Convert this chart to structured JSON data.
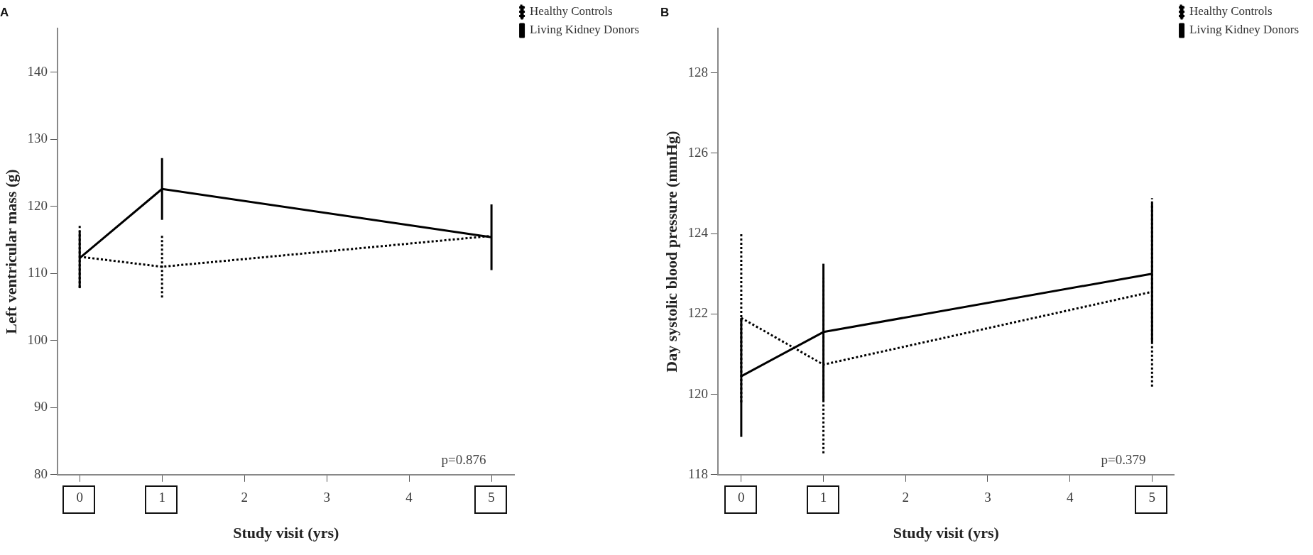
{
  "chart_data": [
    {
      "type": "line",
      "title": "A",
      "xlabel": "Study visit (yrs)",
      "ylabel": "Left ventricular mass (g)",
      "x": [
        0,
        1,
        5
      ],
      "xlim": [
        -0.27,
        5.28
      ],
      "xticks": [
        0,
        1,
        2,
        3,
        4,
        5
      ],
      "ylim": [
        80,
        146.5
      ],
      "yticks": [
        80,
        90,
        100,
        110,
        120,
        130,
        140
      ],
      "legend": "top right",
      "marker": "none",
      "annotations": [
        "p=0.876"
      ],
      "series": [
        {
          "name": "Healthy Controls",
          "color": "#000000",
          "line_style": "dotted",
          "values": [
            112.5,
            111.0,
            115.6
          ],
          "errors": [
            [
              107.9,
              117.2
            ],
            [
              106.4,
              115.7
            ],
            null
          ]
        },
        {
          "name": "Living Kidney Donors",
          "color": "#000000",
          "line_style": "solid",
          "values": [
            112.3,
            122.6,
            115.4
          ],
          "errors": [
            [
              107.8,
              116.3
            ],
            [
              118.0,
              127.2
            ],
            [
              110.5,
              120.3
            ]
          ]
        }
      ]
    },
    {
      "type": "line",
      "title": "B",
      "xlabel": "Study visit (yrs)",
      "ylabel": "Day systolic blood pressure (mmHg)",
      "x": [
        0,
        1,
        5
      ],
      "xlim": [
        -0.285,
        5.27
      ],
      "xticks": [
        0,
        1,
        2,
        3,
        4,
        5
      ],
      "ylim": [
        118,
        129.1
      ],
      "yticks": [
        118,
        120,
        122,
        124,
        126,
        128
      ],
      "legend": "top right",
      "marker": "none",
      "annotations": [
        "p=0.379"
      ],
      "series": [
        {
          "name": "Healthy Controls",
          "color": "#000000",
          "line_style": "dotted",
          "values": [
            121.9,
            120.74,
            122.55
          ],
          "errors": [
            [
              119.8,
              124.03
            ],
            [
              118.53,
              122.9
            ],
            [
              120.19,
              124.88
            ]
          ]
        },
        {
          "name": "Living Kidney Donors",
          "color": "#000000",
          "line_style": "solid",
          "values": [
            120.45,
            121.55,
            123.0
          ],
          "errors": [
            [
              118.94,
              121.9
            ],
            [
              119.84,
              123.25
            ],
            [
              121.3,
              124.76
            ]
          ]
        }
      ]
    }
  ]
}
